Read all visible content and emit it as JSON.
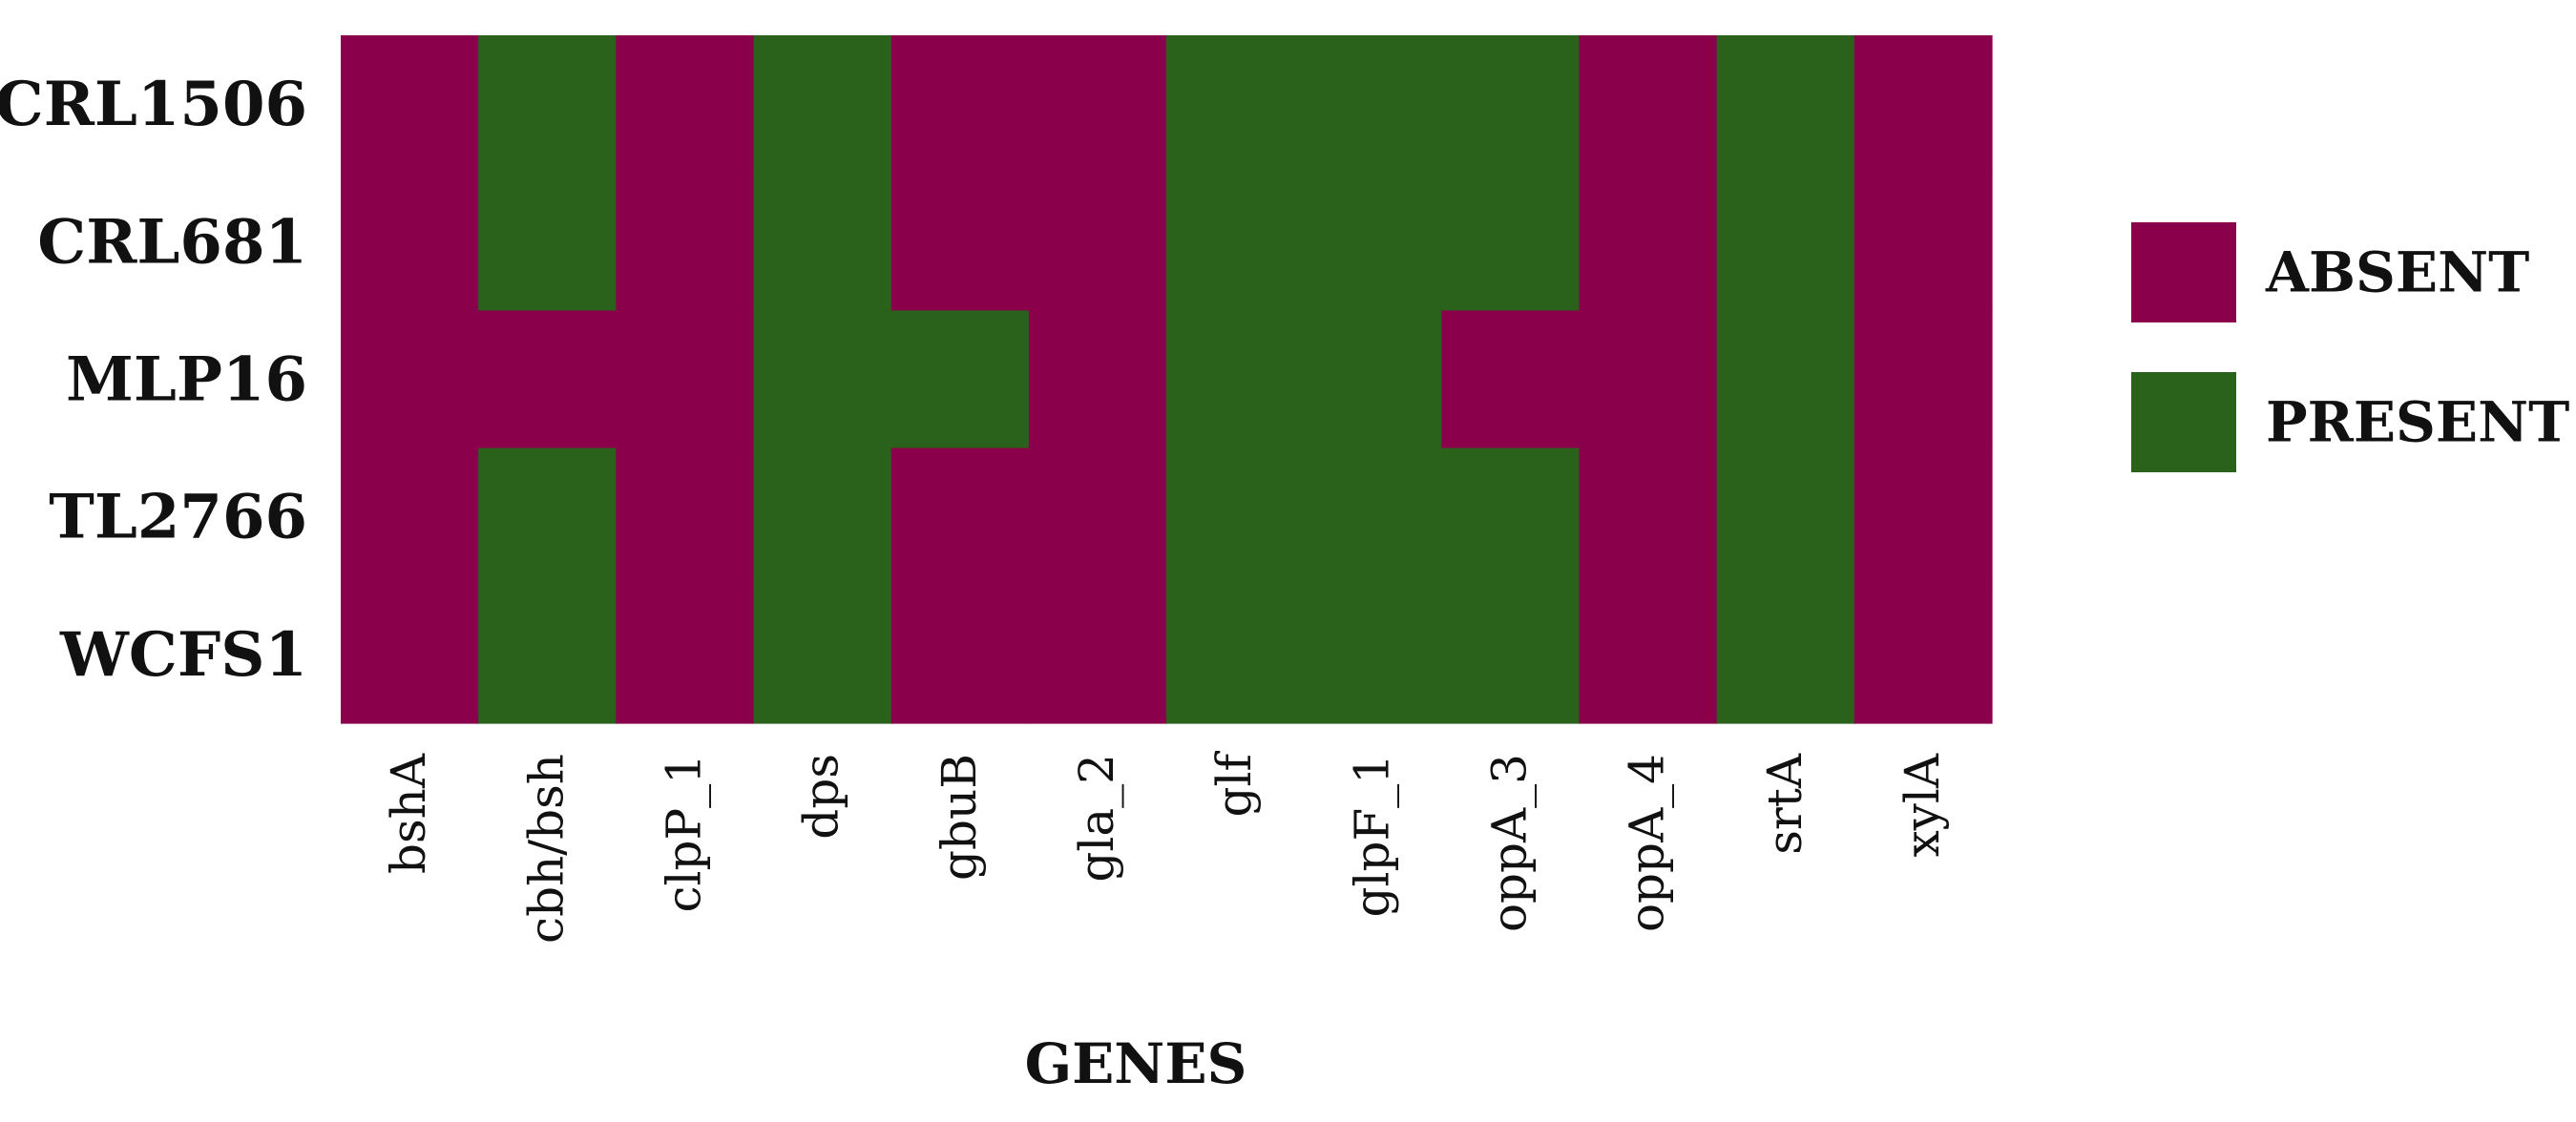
{
  "chart_data": {
    "type": "heatmap",
    "title": "",
    "xlabel": "GENES",
    "ylabel": "",
    "rows": [
      "CRL1506",
      "CRL681",
      "MLP16",
      "TL2766",
      "WCFS1"
    ],
    "columns": [
      "bshA",
      "cbh/bsh",
      "clpP_1",
      "dps",
      "gbuB",
      "gla_2",
      "glf",
      "glpF_1",
      "oppA_3",
      "oppA_4",
      "srtA",
      "xylA"
    ],
    "values": [
      [
        "ABSENT",
        "PRESENT",
        "ABSENT",
        "PRESENT",
        "ABSENT",
        "ABSENT",
        "PRESENT",
        "PRESENT",
        "PRESENT",
        "ABSENT",
        "PRESENT",
        "ABSENT"
      ],
      [
        "ABSENT",
        "PRESENT",
        "ABSENT",
        "PRESENT",
        "ABSENT",
        "ABSENT",
        "PRESENT",
        "PRESENT",
        "PRESENT",
        "ABSENT",
        "PRESENT",
        "ABSENT"
      ],
      [
        "ABSENT",
        "ABSENT",
        "ABSENT",
        "PRESENT",
        "PRESENT",
        "ABSENT",
        "PRESENT",
        "PRESENT",
        "ABSENT",
        "ABSENT",
        "PRESENT",
        "ABSENT"
      ],
      [
        "ABSENT",
        "PRESENT",
        "ABSENT",
        "PRESENT",
        "ABSENT",
        "ABSENT",
        "PRESENT",
        "PRESENT",
        "PRESENT",
        "ABSENT",
        "PRESENT",
        "ABSENT"
      ],
      [
        "ABSENT",
        "PRESENT",
        "ABSENT",
        "PRESENT",
        "ABSENT",
        "ABSENT",
        "PRESENT",
        "PRESENT",
        "PRESENT",
        "ABSENT",
        "PRESENT",
        "ABSENT"
      ]
    ],
    "legend": {
      "placement": "right",
      "entries": [
        {
          "label": "ABSENT",
          "color": "#8b004b"
        },
        {
          "label": "PRESENT",
          "color": "#2a621c"
        }
      ]
    },
    "grid": false
  }
}
